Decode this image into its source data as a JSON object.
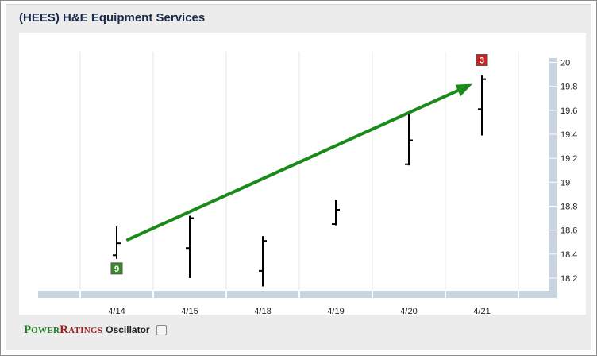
{
  "header": {
    "title": "(HEES) H&E Equipment Services"
  },
  "footer": {
    "brand_power_initial": "P",
    "brand_power_rest": "OWER",
    "brand_ratings_initial": "R",
    "brand_ratings_rest": "ATINGS",
    "oscillator_label": "Oscillator"
  },
  "colors": {
    "trend_arrow": "#1a8a1a",
    "start_badge": "#3a8a2a",
    "end_badge": "#cc2222",
    "price_bar": "#000000",
    "axis_strip": "#c8d4e0",
    "grid": "#e6e6e6",
    "tick_text": "#222222"
  },
  "chart_data": {
    "type": "ohlc",
    "categories": [
      "4/14",
      "4/15",
      "4/18",
      "4/19",
      "4/20",
      "4/21"
    ],
    "series": [
      {
        "values": [
          {
            "open": 18.39,
            "high": 18.63,
            "low": 18.36,
            "close": 18.49
          },
          {
            "open": 18.45,
            "high": 18.72,
            "low": 18.2,
            "close": 18.7
          },
          {
            "open": 18.26,
            "high": 18.55,
            "low": 18.13,
            "close": 18.51
          },
          {
            "open": 18.65,
            "high": 18.85,
            "low": 18.64,
            "close": 18.77
          },
          {
            "open": 19.15,
            "high": 19.59,
            "low": 19.14,
            "close": 19.35
          },
          {
            "open": 19.61,
            "high": 19.89,
            "low": 19.39,
            "close": 19.86
          }
        ]
      }
    ],
    "ylim": [
      18.1,
      20.05
    ],
    "yticks": [
      "18.2",
      "18.4",
      "18.6",
      "18.8",
      "19",
      "19.2",
      "19.4",
      "19.6",
      "19.8",
      "20"
    ],
    "y_axis_side": "right",
    "grid": "vertical",
    "trend_arrow": {
      "from": {
        "x": "4/14",
        "y": 18.52
      },
      "to": {
        "x": "4/21",
        "y": 19.82
      },
      "direction": "up"
    },
    "badges": [
      {
        "x": "4/14",
        "y": 18.28,
        "label": "9",
        "color": "green"
      },
      {
        "x": "4/21",
        "y": 20.02,
        "label": "3",
        "color": "red"
      }
    ]
  }
}
